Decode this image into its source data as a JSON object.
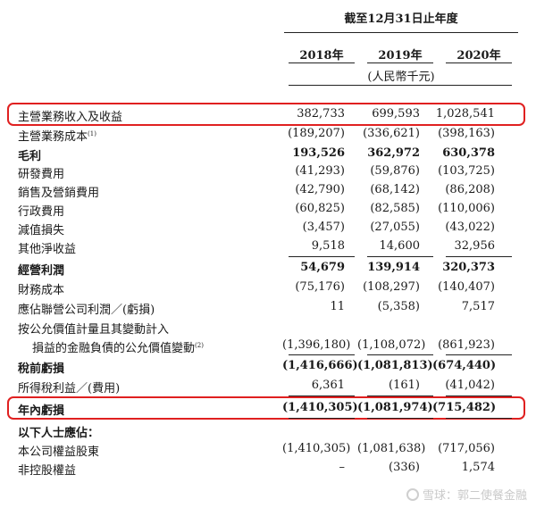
{
  "header": {
    "period": "截至12月31日止年度",
    "years": [
      "2018年",
      "2019年",
      "2020年"
    ],
    "unit": "(人民幣千元)"
  },
  "rows": [
    {
      "label": "主營業務收入及收益",
      "sup": "",
      "values": [
        "382,733",
        "699,593",
        "1,028,541"
      ],
      "bold": false,
      "highlight": true
    },
    {
      "label": "主營業務成本",
      "sup": "(1)",
      "values": [
        "(189,207)",
        "(336,621)",
        "(398,163)"
      ],
      "bold": false
    },
    {
      "label": "毛利",
      "sup": "",
      "values": [
        "193,526",
        "362,972",
        "630,378"
      ],
      "bold": true
    },
    {
      "label": "研發費用",
      "sup": "",
      "values": [
        "(41,293)",
        "(59,876)",
        "(103,725)"
      ],
      "bold": false
    },
    {
      "label": "銷售及營銷費用",
      "sup": "",
      "values": [
        "(42,790)",
        "(68,142)",
        "(86,208)"
      ],
      "bold": false
    },
    {
      "label": "行政費用",
      "sup": "",
      "values": [
        "(60,825)",
        "(82,585)",
        "(110,006)"
      ],
      "bold": false
    },
    {
      "label": "減值損失",
      "sup": "",
      "values": [
        "(3,457)",
        "(27,055)",
        "(43,022)"
      ],
      "bold": false
    },
    {
      "label": "其他淨收益",
      "sup": "",
      "values": [
        "9,518",
        "14,600",
        "32,956"
      ],
      "bold": false
    },
    {
      "label": "經營利潤",
      "sup": "",
      "values": [
        "54,679",
        "139,914",
        "320,373"
      ],
      "bold": true
    },
    {
      "label": "財務成本",
      "sup": "",
      "values": [
        "(75,176)",
        "(108,297)",
        "(140,407)"
      ],
      "bold": false
    },
    {
      "label": "應佔聯營公司利潤／(虧損)",
      "sup": "",
      "values": [
        "11",
        "(5,358)",
        "7,517"
      ],
      "bold": false
    },
    {
      "label": "按公允價值計量且其變動計入",
      "sup": "",
      "values": [
        "",
        "",
        ""
      ],
      "bold": false
    },
    {
      "label": "損益的金融負債的公允價值變動",
      "sup": "(2)",
      "values": [
        "(1,396,180)",
        "(1,108,072)",
        "(861,923)"
      ],
      "bold": false,
      "indent": true
    },
    {
      "label": "稅前虧損",
      "sup": "",
      "values": [
        "(1,416,666)",
        "(1,081,813)",
        "(674,440)"
      ],
      "bold": true
    },
    {
      "label": "所得稅利益／(費用)",
      "sup": "",
      "values": [
        "6,361",
        "(161)",
        "(41,042)"
      ],
      "bold": false
    },
    {
      "label": "年內虧損",
      "sup": "",
      "values": [
        "(1,410,305)",
        "(1,081,974)",
        "(715,482)"
      ],
      "bold": true,
      "highlight": true
    },
    {
      "label": "以下人士應佔：",
      "sup": "",
      "values": [
        "",
        "",
        ""
      ],
      "bold": true
    },
    {
      "label": "本公司權益股東",
      "sup": "",
      "values": [
        "(1,410,305)",
        "(1,081,638)",
        "(717,056)"
      ],
      "bold": false
    },
    {
      "label": "非控股權益",
      "sup": "",
      "values": [
        "–",
        "(336)",
        "1,574"
      ],
      "bold": false
    }
  ],
  "watermark": "雪球：郭二使餐金融"
}
